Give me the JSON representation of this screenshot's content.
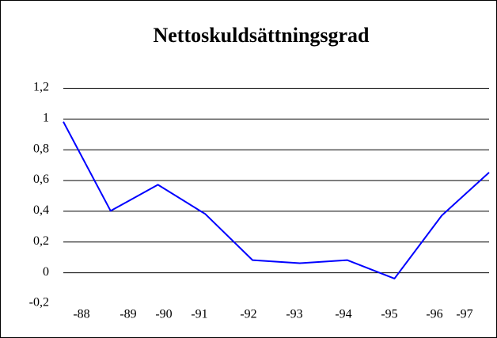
{
  "chart_data": {
    "type": "line",
    "title": "Nettoskuldsättningsgrad",
    "categories": [
      "-88",
      "-89",
      "-90",
      "-91",
      "-92",
      "-93",
      "-94",
      "-95",
      "-96",
      "-97"
    ],
    "series": [
      {
        "name": "Nettoskuldsättningsgrad",
        "color": "#0000ff",
        "values": [
          0.98,
          0.4,
          0.57,
          0.38,
          0.08,
          0.06,
          0.08,
          -0.04,
          0.37,
          0.65
        ]
      }
    ],
    "ylim": [
      -0.2,
      1.2
    ],
    "yticks": [
      {
        "value": -0.2,
        "label": "-0,2"
      },
      0,
      {
        "value": 0.2,
        "label": "0,2"
      },
      {
        "value": 0.4,
        "label": "0,4"
      },
      {
        "value": 0.6,
        "label": "0,6"
      },
      {
        "value": 0.8,
        "label": "0,8"
      },
      1,
      {
        "value": 1.2,
        "label": "1,2"
      }
    ],
    "grid": true
  }
}
